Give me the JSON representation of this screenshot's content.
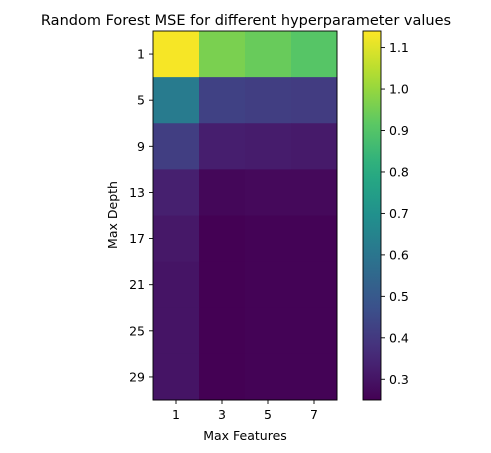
{
  "chart_data": {
    "type": "heatmap",
    "title": "Random Forest MSE for different hyperparameter values",
    "xlabel": "Max Features",
    "ylabel": "Max Depth",
    "x_tick_labels": [
      "1",
      "3",
      "5",
      "7"
    ],
    "y_tick_labels": [
      "1",
      "5",
      "9",
      "13",
      "17",
      "21",
      "25",
      "29"
    ],
    "columns": [
      1,
      3,
      5,
      7
    ],
    "rows": [
      1,
      5,
      9,
      13,
      17,
      21,
      25,
      29
    ],
    "values": [
      [
        1.13,
        0.96,
        0.935,
        0.905
      ],
      [
        0.62,
        0.425,
        0.415,
        0.41
      ],
      [
        0.415,
        0.325,
        0.32,
        0.315
      ],
      [
        0.33,
        0.265,
        0.27,
        0.27
      ],
      [
        0.31,
        0.25,
        0.255,
        0.255
      ],
      [
        0.3,
        0.25,
        0.255,
        0.255
      ],
      [
        0.3,
        0.25,
        0.255,
        0.255
      ],
      [
        0.3,
        0.25,
        0.255,
        0.255
      ]
    ],
    "colormap": "viridis",
    "colorbar": {
      "range": [
        0.25,
        1.14
      ],
      "ticks": [
        0.3,
        0.4,
        0.5,
        0.6,
        0.7,
        0.8,
        0.9,
        1.0,
        1.1
      ],
      "tick_labels": [
        "0.3",
        "0.4",
        "0.5",
        "0.6",
        "0.7",
        "0.8",
        "0.9",
        "1.0",
        "1.1"
      ]
    }
  }
}
